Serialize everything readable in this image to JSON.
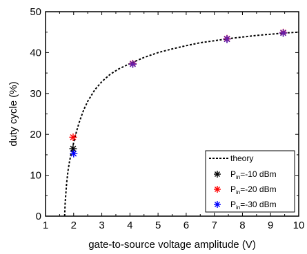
{
  "colors": {
    "axis": "#000000",
    "theory": "#000000",
    "series_black": "#000000",
    "series_red": "#ff0000",
    "series_blue": "#0000ff",
    "series_purple": "#6a1fa8"
  },
  "legend": {
    "placement": "bottom-right",
    "theory_label": "theory",
    "series_prefix": "P",
    "series_subscript": "in",
    "series_suffixes": [
      "=-10 dBm",
      "=-20 dBm",
      "=-30 dBm"
    ]
  },
  "chart_data": {
    "type": "scatter",
    "title": "",
    "xlabel": "gate-to-source voltage amplitude (V)",
    "ylabel": "duty cycle (%)",
    "xlim": [
      1,
      10
    ],
    "ylim": [
      0,
      50
    ],
    "xticks": [
      1,
      2,
      3,
      4,
      5,
      6,
      7,
      8,
      9,
      10
    ],
    "yticks": [
      0,
      10,
      20,
      30,
      40,
      50
    ],
    "grid": false,
    "theory": {
      "name": "theory",
      "style": "dashed",
      "x": [
        1.68,
        1.7,
        1.75,
        1.8,
        1.85,
        1.9,
        1.95,
        2.0,
        2.1,
        2.2,
        2.35,
        2.5,
        2.75,
        3.0,
        3.3,
        3.6,
        4.0,
        4.5,
        5.0,
        5.5,
        6.0,
        6.5,
        7.0,
        7.5,
        8.0,
        8.5,
        9.0,
        9.5,
        10.0
      ],
      "y": [
        0,
        3.4,
        8.1,
        11.1,
        13.3,
        15.0,
        16.4,
        18.0,
        20.7,
        23.0,
        25.9,
        28.1,
        30.9,
        32.9,
        34.7,
        36.0,
        37.3,
        38.8,
        40.0,
        40.9,
        41.7,
        42.4,
        42.9,
        43.4,
        43.8,
        44.2,
        44.5,
        44.8,
        45.0
      ]
    },
    "series": [
      {
        "name": "P_in=-10 dBm",
        "color": "#000000",
        "x": [
          1.98,
          4.1,
          7.45,
          9.45
        ],
        "y": [
          16.5,
          37.2,
          43.3,
          44.8
        ]
      },
      {
        "name": "P_in=-20 dBm",
        "color": "#ff0000",
        "x": [
          1.98,
          4.1,
          7.45,
          9.45
        ],
        "y": [
          19.3,
          37.3,
          43.4,
          44.9
        ]
      },
      {
        "name": "P_in=-30 dBm",
        "color": "#0000ff",
        "x": [
          2.0,
          4.1,
          7.45,
          9.45
        ],
        "y": [
          15.3,
          37.2,
          43.3,
          44.8
        ]
      }
    ]
  }
}
